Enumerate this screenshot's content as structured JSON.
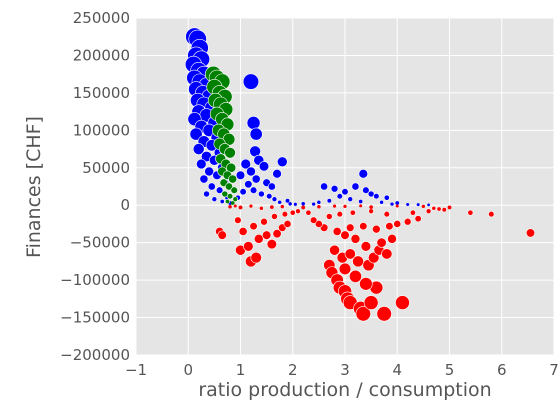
{
  "chart_data": {
    "type": "scatter",
    "title": "",
    "xlabel": "ratio production / consumption",
    "ylabel": "Finances [CHF]",
    "xlim": [
      -1,
      7
    ],
    "ylim": [
      -200000,
      250000
    ],
    "x_ticks": [
      -1,
      0,
      1,
      2,
      3,
      4,
      5,
      6,
      7
    ],
    "x_tick_labels": [
      "−1",
      "0",
      "1",
      "2",
      "3",
      "4",
      "5",
      "6",
      "7"
    ],
    "y_ticks": [
      -200000,
      -150000,
      -100000,
      -50000,
      0,
      50000,
      100000,
      150000,
      200000,
      250000
    ],
    "y_tick_labels": [
      "−200000",
      "−150000",
      "−100000",
      "−50000",
      "0",
      "50000",
      "100000",
      "150000",
      "200000",
      "250000"
    ],
    "grid": true,
    "background": "#e5e5e5",
    "grid_color": "#ffffff",
    "point_size_encoding": "marker size grows with |finances|",
    "series": [
      {
        "color": "#0000ff",
        "points": [
          [
            0.12,
            225000
          ],
          [
            0.18,
            222000
          ],
          [
            0.22,
            210000
          ],
          [
            0.15,
            200000
          ],
          [
            0.25,
            195000
          ],
          [
            0.1,
            188000
          ],
          [
            0.2,
            180000
          ],
          [
            0.3,
            175000
          ],
          [
            0.12,
            170000
          ],
          [
            0.22,
            165000
          ],
          [
            0.35,
            160000
          ],
          [
            0.15,
            155000
          ],
          [
            0.28,
            150000
          ],
          [
            0.4,
            145000
          ],
          [
            0.18,
            140000
          ],
          [
            0.3,
            135000
          ],
          [
            0.45,
            130000
          ],
          [
            0.2,
            125000
          ],
          [
            0.35,
            120000
          ],
          [
            0.12,
            115000
          ],
          [
            0.5,
            110000
          ],
          [
            0.25,
            105000
          ],
          [
            0.4,
            100000
          ],
          [
            0.15,
            95000
          ],
          [
            0.55,
            90000
          ],
          [
            0.3,
            85000
          ],
          [
            0.45,
            80000
          ],
          [
            0.2,
            75000
          ],
          [
            0.6,
            70000
          ],
          [
            0.35,
            65000
          ],
          [
            0.5,
            60000
          ],
          [
            0.25,
            55000
          ],
          [
            0.65,
            50000
          ],
          [
            0.4,
            45000
          ],
          [
            0.55,
            40000
          ],
          [
            0.3,
            35000
          ],
          [
            0.7,
            30000
          ],
          [
            0.45,
            25000
          ],
          [
            0.6,
            20000
          ],
          [
            0.35,
            15000
          ],
          [
            0.75,
            10000
          ],
          [
            0.5,
            8000
          ],
          [
            0.65,
            5000
          ],
          [
            0.8,
            3000
          ],
          [
            1.2,
            165000
          ],
          [
            1.25,
            110000
          ],
          [
            1.3,
            95000
          ],
          [
            1.28,
            72000
          ],
          [
            1.35,
            60000
          ],
          [
            1.1,
            55000
          ],
          [
            1.2,
            45000
          ],
          [
            1.45,
            52000
          ],
          [
            1.0,
            40000
          ],
          [
            1.3,
            35000
          ],
          [
            1.5,
            30000
          ],
          [
            1.15,
            28000
          ],
          [
            1.6,
            25000
          ],
          [
            1.25,
            20000
          ],
          [
            1.05,
            18000
          ],
          [
            1.4,
            15000
          ],
          [
            1.7,
            42000
          ],
          [
            1.8,
            58000
          ],
          [
            1.55,
            12000
          ],
          [
            0.95,
            10000
          ],
          [
            1.65,
            8000
          ],
          [
            1.9,
            6000
          ],
          [
            1.75,
            4000
          ],
          [
            2.6,
            25000
          ],
          [
            2.8,
            22000
          ],
          [
            3.0,
            18000
          ],
          [
            3.2,
            25000
          ],
          [
            3.35,
            42000
          ],
          [
            3.4,
            20000
          ],
          [
            3.5,
            15000
          ],
          [
            3.6,
            12000
          ],
          [
            3.8,
            10000
          ],
          [
            2.9,
            12000
          ],
          [
            3.1,
            8000
          ],
          [
            2.7,
            6000
          ],
          [
            3.3,
            5000
          ],
          [
            3.7,
            4000
          ],
          [
            4.0,
            3000
          ],
          [
            2.5,
            4000
          ],
          [
            2.2,
            2000
          ],
          [
            2.4,
            1500
          ],
          [
            3.9,
            1500
          ],
          [
            4.2,
            1000
          ],
          [
            4.4,
            800
          ],
          [
            4.6,
            500
          ],
          [
            1.95,
            1800
          ],
          [
            2.05,
            1200
          ]
        ]
      },
      {
        "color": "#008000",
        "points": [
          [
            0.48,
            175000
          ],
          [
            0.55,
            170000
          ],
          [
            0.65,
            165000
          ],
          [
            0.5,
            158000
          ],
          [
            0.6,
            150000
          ],
          [
            0.7,
            145000
          ],
          [
            0.52,
            140000
          ],
          [
            0.62,
            135000
          ],
          [
            0.72,
            128000
          ],
          [
            0.55,
            122000
          ],
          [
            0.65,
            115000
          ],
          [
            0.75,
            108000
          ],
          [
            0.58,
            100000
          ],
          [
            0.68,
            95000
          ],
          [
            0.78,
            88000
          ],
          [
            0.6,
            82000
          ],
          [
            0.7,
            75000
          ],
          [
            0.8,
            70000
          ],
          [
            0.62,
            62000
          ],
          [
            0.72,
            55000
          ],
          [
            0.82,
            50000
          ],
          [
            0.65,
            45000
          ],
          [
            0.75,
            40000
          ],
          [
            0.85,
            35000
          ],
          [
            0.68,
            30000
          ],
          [
            0.78,
            25000
          ],
          [
            0.88,
            20000
          ],
          [
            0.7,
            15000
          ],
          [
            0.8,
            12000
          ],
          [
            0.9,
            8000
          ],
          [
            0.75,
            5000
          ],
          [
            0.85,
            3000
          ]
        ]
      },
      {
        "color": "#ff0000",
        "points": [
          [
            2.8,
            -60000
          ],
          [
            2.7,
            -80000
          ],
          [
            2.75,
            -90000
          ],
          [
            2.85,
            -100000
          ],
          [
            2.9,
            -110000
          ],
          [
            3.0,
            -115000
          ],
          [
            3.05,
            -125000
          ],
          [
            3.1,
            -130000
          ],
          [
            3.3,
            -138000
          ],
          [
            3.35,
            -145000
          ],
          [
            3.5,
            -130000
          ],
          [
            3.75,
            -145000
          ],
          [
            4.1,
            -130000
          ],
          [
            3.6,
            -110000
          ],
          [
            3.4,
            -105000
          ],
          [
            3.2,
            -95000
          ],
          [
            3.0,
            -85000
          ],
          [
            2.95,
            -70000
          ],
          [
            3.1,
            -65000
          ],
          [
            3.25,
            -75000
          ],
          [
            3.45,
            -80000
          ],
          [
            3.55,
            -70000
          ],
          [
            3.65,
            -60000
          ],
          [
            3.8,
            -65000
          ],
          [
            3.7,
            -50000
          ],
          [
            3.9,
            -45000
          ],
          [
            3.4,
            -55000
          ],
          [
            3.2,
            -45000
          ],
          [
            3.0,
            -40000
          ],
          [
            2.85,
            -35000
          ],
          [
            3.1,
            -30000
          ],
          [
            3.35,
            -28000
          ],
          [
            3.6,
            -32000
          ],
          [
            3.85,
            -28000
          ],
          [
            4.0,
            -25000
          ],
          [
            4.2,
            -22000
          ],
          [
            4.4,
            -18000
          ],
          [
            2.6,
            -30000
          ],
          [
            2.5,
            -25000
          ],
          [
            2.4,
            -20000
          ],
          [
            2.7,
            -15000
          ],
          [
            2.9,
            -12000
          ],
          [
            3.15,
            -10000
          ],
          [
            3.5,
            -8000
          ],
          [
            3.8,
            -12000
          ],
          [
            4.3,
            -10000
          ],
          [
            4.6,
            -8000
          ],
          [
            2.3,
            -10000
          ],
          [
            2.1,
            -8000
          ],
          [
            1.2,
            -75000
          ],
          [
            1.3,
            -70000
          ],
          [
            1.0,
            -60000
          ],
          [
            1.15,
            -55000
          ],
          [
            1.35,
            -45000
          ],
          [
            1.5,
            -40000
          ],
          [
            1.6,
            -52000
          ],
          [
            1.7,
            -38000
          ],
          [
            1.8,
            -30000
          ],
          [
            1.9,
            -25000
          ],
          [
            1.05,
            -35000
          ],
          [
            1.25,
            -28000
          ],
          [
            1.45,
            -22000
          ],
          [
            0.95,
            -20000
          ],
          [
            1.65,
            -15000
          ],
          [
            1.85,
            -12000
          ],
          [
            2.0,
            -10000
          ],
          [
            0.6,
            -35000
          ],
          [
            0.65,
            -40000
          ],
          [
            5.4,
            -10000
          ],
          [
            5.8,
            -12000
          ],
          [
            6.55,
            -37000
          ],
          [
            4.8,
            -5000
          ],
          [
            5.0,
            -3000
          ],
          [
            4.9,
            -6000
          ],
          [
            4.7,
            -4000
          ],
          [
            0.8,
            -2000
          ],
          [
            1.0,
            -3000
          ],
          [
            1.4,
            -4000
          ],
          [
            1.6,
            -2500
          ],
          [
            2.2,
            -3000
          ],
          [
            2.5,
            -2000
          ],
          [
            3.0,
            -1500
          ],
          [
            3.5,
            -2500
          ],
          [
            4.0,
            -1000
          ],
          [
            4.5,
            -1500
          ],
          [
            0.9,
            -1000
          ],
          [
            1.2,
            -1200
          ],
          [
            1.8,
            -1800
          ],
          [
            2.8,
            -1200
          ],
          [
            3.3,
            -800
          ]
        ]
      }
    ]
  }
}
